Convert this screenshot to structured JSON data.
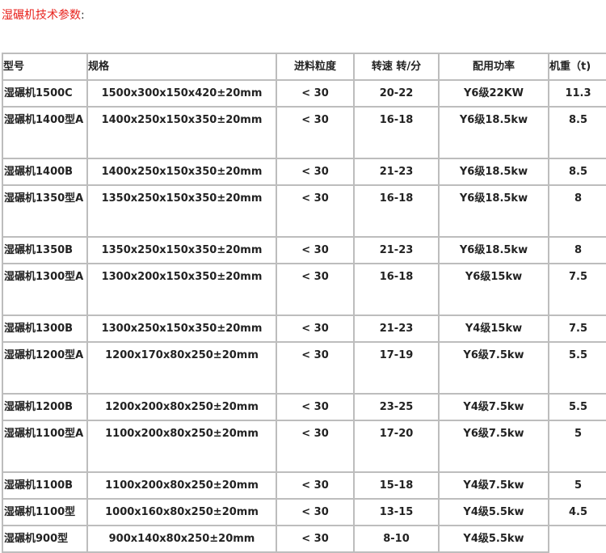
{
  "title": {
    "text": "湿碾机技术参数",
    "colon": ":"
  },
  "table": {
    "headers": [
      "型号",
      "规格",
      "进料粒度",
      "转速 转/分",
      "配用功率",
      "机重（t)"
    ],
    "rows": [
      {
        "model": "湿碾机1500C",
        "spec": "1500x300x150x420±20mm",
        "feed": "< 30",
        "speed": "20-22",
        "power": "Y6级22KW",
        "weight": "11.3",
        "tall": false
      },
      {
        "model": "湿碾机1400型A",
        "spec": "1400x250x150x350±20mm",
        "feed": "< 30",
        "speed": "16-18",
        "power": "Y6级18.5kw",
        "weight": "8.5",
        "tall": true
      },
      {
        "model": "湿碾机1400B",
        "spec": "1400x250x150x350±20mm",
        "feed": "< 30",
        "speed": "21-23",
        "power": "Y6级18.5kw",
        "weight": "8.5",
        "tall": false
      },
      {
        "model": "湿碾机1350型A",
        "spec": "1350x250x150x350±20mm",
        "feed": "< 30",
        "speed": "16-18",
        "power": "Y6级18.5kw",
        "weight": "8",
        "tall": true
      },
      {
        "model": "湿碾机1350B",
        "spec": "1350x250x150x350±20mm",
        "feed": "< 30",
        "speed": "21-23",
        "power": "Y6级18.5kw",
        "weight": "8",
        "tall": false
      },
      {
        "model": "湿碾机1300型A",
        "spec": "1300x200x150x350±20mm",
        "feed": "< 30",
        "speed": "16-18",
        "power": "Y6级15kw",
        "weight": "7.5",
        "tall": true
      },
      {
        "model": "湿碾机1300B",
        "spec": "1300x250x150x350±20mm",
        "feed": "< 30",
        "speed": "21-23",
        "power": "Y4级15kw",
        "weight": "7.5",
        "tall": false
      },
      {
        "model": "湿碾机1200型A",
        "spec": "1200x170x80x250±20mm",
        "feed": "< 30",
        "speed": "17-19",
        "power": "Y6级7.5kw",
        "weight": "5.5",
        "tall": true
      },
      {
        "model": "湿碾机1200B",
        "spec": "1200x200x80x250±20mm",
        "feed": "< 30",
        "speed": "23-25",
        "power": "Y4级7.5kw",
        "weight": "5.5",
        "tall": false
      },
      {
        "model": "湿碾机1100型A",
        "spec": "1100x200x80x250±20mm",
        "feed": "< 30",
        "speed": "17-20",
        "power": "Y6级7.5kw",
        "weight": "5",
        "tall": true
      },
      {
        "model": "湿碾机1100B",
        "spec": "1100x200x80x250±20mm",
        "feed": "< 30",
        "speed": "15-18",
        "power": "Y4级7.5kw",
        "weight": "5",
        "tall": false
      },
      {
        "model": "湿碾机1100型",
        "spec": "1000x160x80x250±20mm",
        "feed": "< 30",
        "speed": "13-15",
        "power": "Y4级5.5kw",
        "weight": "4.5",
        "tall": false
      },
      {
        "model": "湿碾机900型",
        "spec": "900x140x80x250±20mm",
        "feed": "< 30",
        "speed": "8-10",
        "power": "Y4级5.5kw",
        "weight": "",
        "tall": false
      }
    ]
  }
}
